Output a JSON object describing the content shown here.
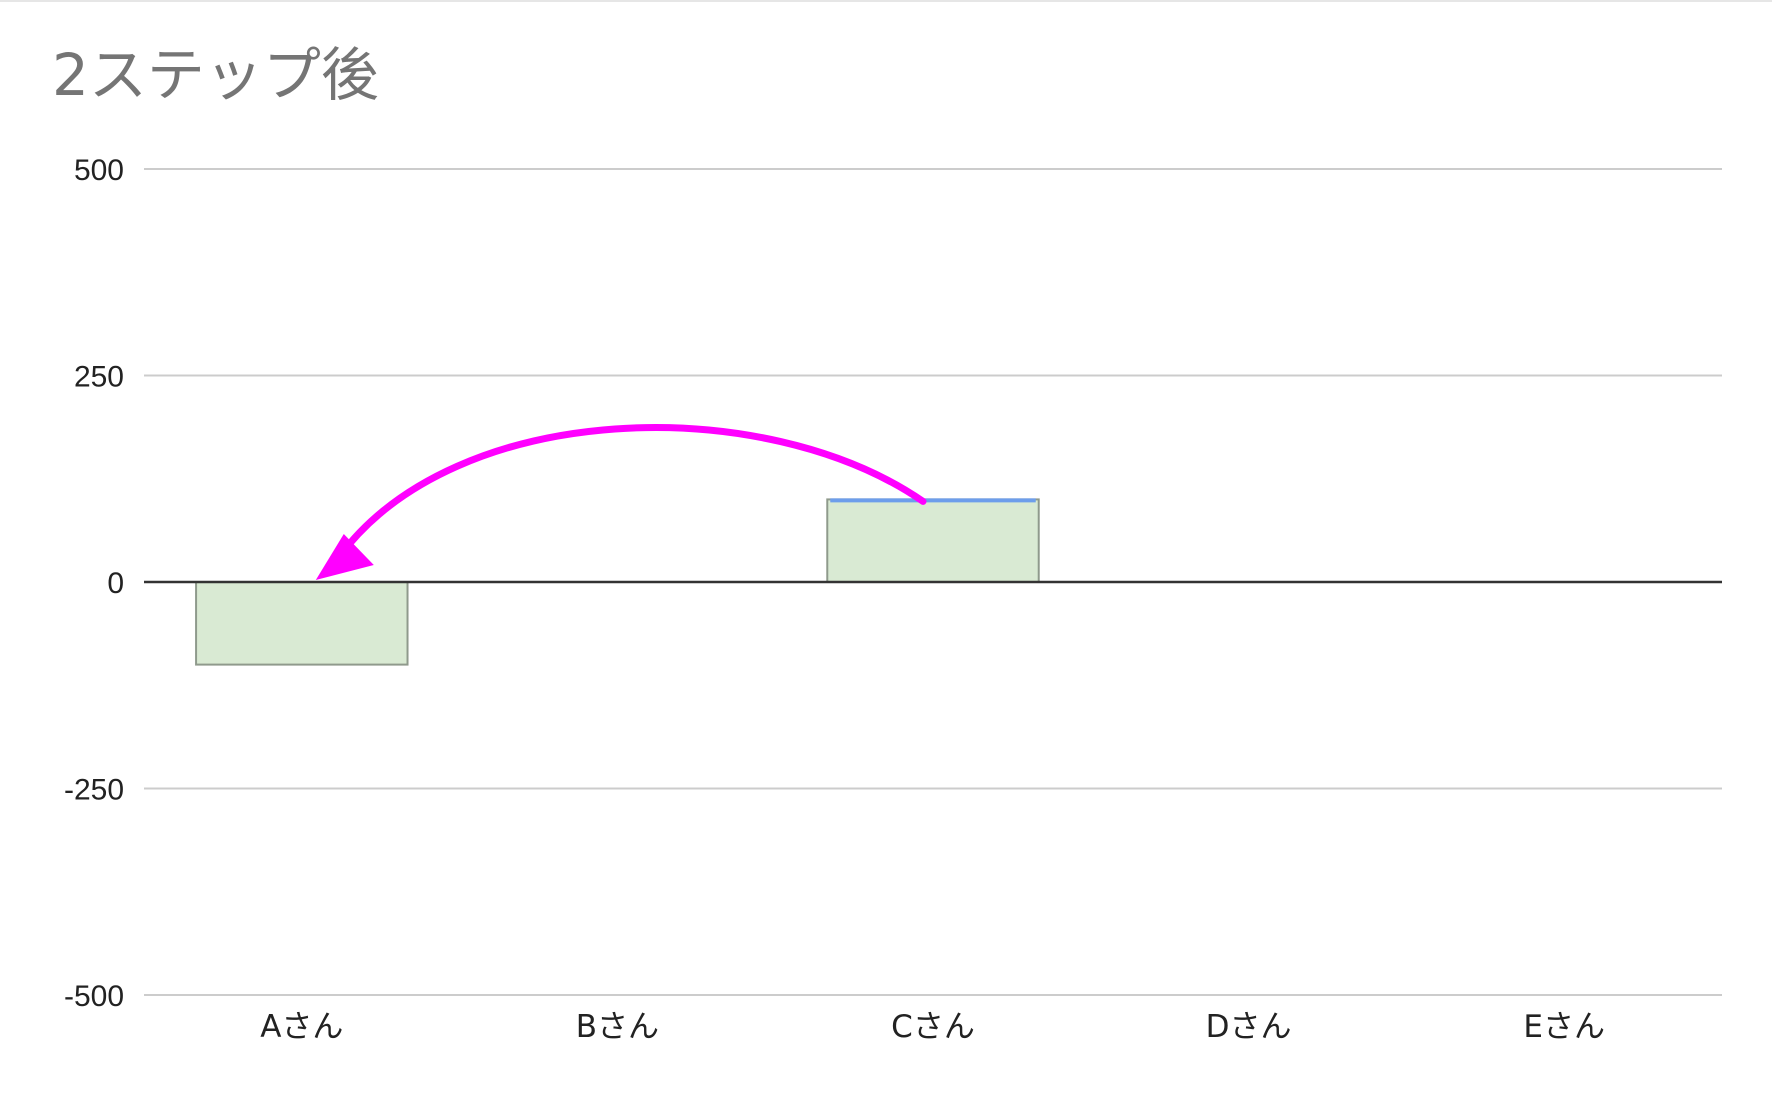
{
  "chart_data": {
    "type": "bar",
    "title": "2ステップ後",
    "categories": [
      "Aさん",
      "Bさん",
      "Cさん",
      "Dさん",
      "Eさん"
    ],
    "values": [
      -100,
      0,
      100,
      0,
      0
    ],
    "y_ticks": [
      "500",
      "250",
      "0",
      "-250",
      "-500"
    ],
    "ylim": [
      -500,
      500
    ],
    "grid": true,
    "xlabel": "",
    "ylabel": "",
    "annotation": {
      "type": "arrow",
      "from_category": "Cさん",
      "to_category": "Aさん"
    }
  },
  "colors": {
    "bar_fill": "#d9ead3",
    "bar_stroke": "#8f9a8c",
    "bar_top_accent": "#6d9eeb",
    "grid": "#cccccc",
    "zero_line": "#333333",
    "arrow": "#ff00ff",
    "title": "#757575"
  }
}
